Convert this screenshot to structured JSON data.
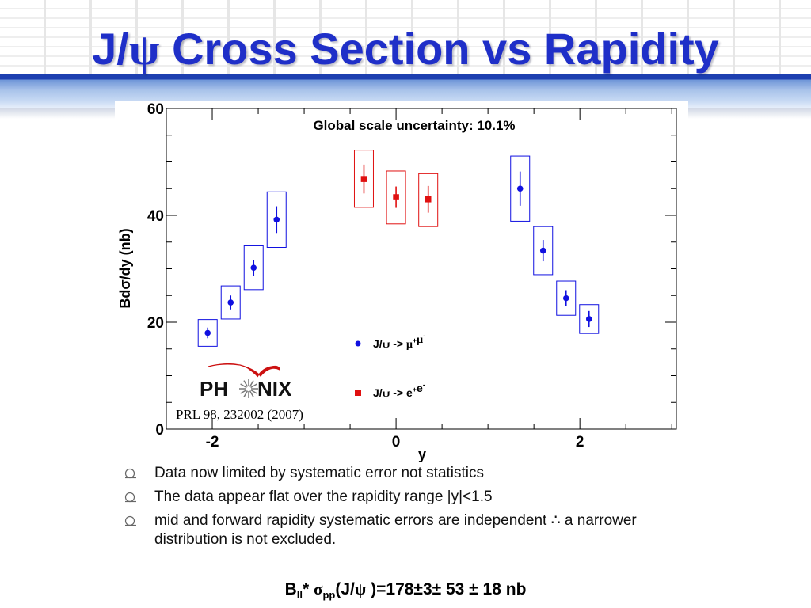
{
  "slide": {
    "title_prefix": "J/",
    "title_psi": "ψ",
    "title_suffix": " Cross Section vs Rapidity"
  },
  "bullets": [
    "Data now limited by systematic error not statistics",
    "The data appear flat over the rapidity range |y|<1.5",
    "mid and forward rapidity systematic errors are independent ∴  a narrower distribution is not excluded."
  ],
  "formula": {
    "b": "B",
    "b_sub": "ll",
    "star": "* ",
    "sigma": "σ",
    "sigma_sub": "pp",
    "paren_open": "(J/",
    "psi": "ψ",
    "result": " )=178±3± 53 ± 18 nb"
  },
  "colors": {
    "title": "#1f2fc8",
    "band": "#1d3fb0",
    "muon": "#1010e0",
    "electron": "#e01010",
    "logo_red": "#cc1111"
  },
  "chart_data": {
    "type": "scatter",
    "title": "",
    "annotation": "Global scale uncertainty: 10.1%",
    "reference": "PRL 98, 232002 (2007)",
    "logo": "PHENIX",
    "xlabel": "y",
    "ylabel": "Bdσ/dy (nb)",
    "xlim": [
      -2.5,
      3.05
    ],
    "ylim": [
      0,
      60
    ],
    "x_ticks": [
      "-2",
      "0",
      "2"
    ],
    "y_ticks": [
      "0",
      "20",
      "40",
      "60"
    ],
    "x_tick_values": [
      -2,
      0,
      2
    ],
    "y_tick_values": [
      0,
      20,
      40,
      60
    ],
    "grid": false,
    "legend_position": "lower-right",
    "series": [
      {
        "name": "J/ψ -> μ+μ-",
        "legend_parts": [
          "J/",
          "ψ",
          " -> ",
          "μ",
          "+",
          "μ",
          "-"
        ],
        "marker": "circle",
        "color": "#1010e0",
        "points": [
          {
            "x": -2.05,
            "y": 18.0,
            "stat": 1.0,
            "sys_lo": 15.5,
            "sys_hi": 20.5
          },
          {
            "x": -1.8,
            "y": 23.7,
            "stat": 1.3,
            "sys_lo": 20.6,
            "sys_hi": 26.8
          },
          {
            "x": -1.55,
            "y": 30.2,
            "stat": 1.5,
            "sys_lo": 26.1,
            "sys_hi": 34.3
          },
          {
            "x": -1.3,
            "y": 39.2,
            "stat": 2.5,
            "sys_lo": 34.0,
            "sys_hi": 44.4
          },
          {
            "x": 1.35,
            "y": 45.0,
            "stat": 3.2,
            "sys_lo": 38.9,
            "sys_hi": 51.1
          },
          {
            "x": 1.6,
            "y": 33.4,
            "stat": 2.0,
            "sys_lo": 28.9,
            "sys_hi": 37.9
          },
          {
            "x": 1.85,
            "y": 24.5,
            "stat": 1.5,
            "sys_lo": 21.3,
            "sys_hi": 27.7
          },
          {
            "x": 2.1,
            "y": 20.6,
            "stat": 1.5,
            "sys_lo": 17.9,
            "sys_hi": 23.3
          }
        ]
      },
      {
        "name": "J/ψ -> e+e-",
        "legend_parts": [
          "J/",
          "ψ",
          " -> ",
          "e",
          "+",
          "e",
          "-"
        ],
        "marker": "square",
        "color": "#e01010",
        "points": [
          {
            "x": -0.35,
            "y": 46.8,
            "stat": 2.7,
            "sys_lo": 41.5,
            "sys_hi": 52.2
          },
          {
            "x": 0.0,
            "y": 43.4,
            "stat": 2.0,
            "sys_lo": 38.4,
            "sys_hi": 48.3
          },
          {
            "x": 0.35,
            "y": 43.0,
            "stat": 2.5,
            "sys_lo": 37.9,
            "sys_hi": 47.8
          }
        ]
      }
    ]
  }
}
